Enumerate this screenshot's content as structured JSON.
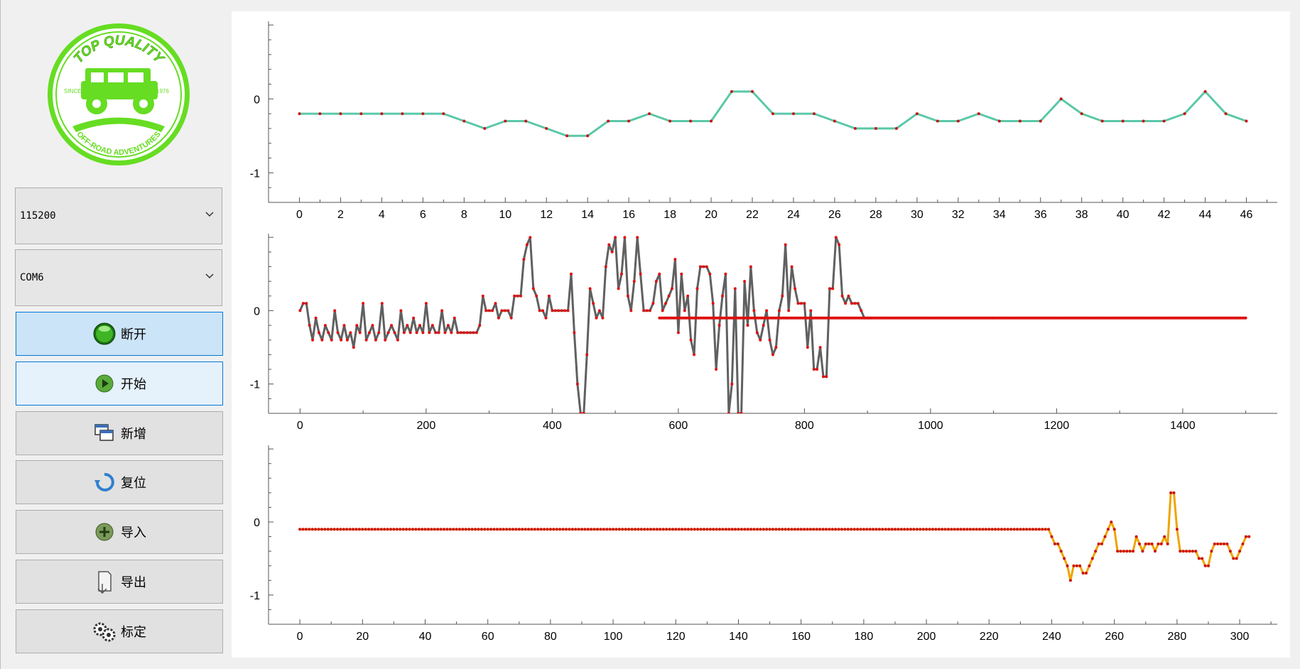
{
  "logo": {
    "text_top": "TOP QUALITY",
    "text_bottom": "OFF-ROAD ADVENTURES",
    "since": "SINCE",
    "year": "1976",
    "color": "#66dd22"
  },
  "controls": {
    "baud_rate": {
      "value": "115200"
    },
    "port": {
      "value": "COM6"
    },
    "buttons": {
      "disconnect": "断开",
      "start": "开始",
      "add": "新增",
      "reset": "复位",
      "import": "导入",
      "export": "导出",
      "calibrate": "标定"
    }
  },
  "chart_data": [
    {
      "type": "line",
      "title": "",
      "xlabel": "",
      "ylabel": "",
      "xlim": [
        -1.5,
        47.5
      ],
      "ylim": [
        -1.4,
        1.05
      ],
      "x_ticks": [
        0,
        2,
        4,
        6,
        8,
        10,
        12,
        14,
        16,
        18,
        20,
        22,
        24,
        26,
        28,
        30,
        32,
        34,
        36,
        38,
        40,
        42,
        44,
        46
      ],
      "y_ticks": [
        0,
        -1
      ],
      "grid": false,
      "line_color": "#5ac8a8",
      "marker_color": "#cc1111",
      "series": [
        {
          "values": [
            -0.2,
            -0.2,
            -0.2,
            -0.2,
            -0.2,
            -0.2,
            -0.2,
            -0.2,
            -0.3,
            -0.4,
            -0.3,
            -0.3,
            -0.4,
            -0.5,
            -0.5,
            -0.3,
            -0.3,
            -0.2,
            -0.3,
            -0.3,
            -0.3,
            0.1,
            0.1,
            -0.2,
            -0.2,
            -0.2,
            -0.3,
            -0.4,
            -0.4,
            -0.4,
            -0.2,
            -0.3,
            -0.3,
            -0.2,
            -0.3,
            -0.3,
            -0.3,
            0.0,
            -0.2,
            -0.3,
            -0.3,
            -0.3,
            -0.3,
            -0.2,
            0.1,
            -0.2,
            -0.3
          ]
        }
      ]
    },
    {
      "type": "line",
      "title": "",
      "xlabel": "",
      "ylabel": "",
      "xlim": [
        -50,
        1550
      ],
      "ylim": [
        -1.4,
        1.05
      ],
      "x_ticks": [
        0,
        200,
        400,
        600,
        800,
        1000,
        1200,
        1400
      ],
      "y_ticks": [
        0,
        -1
      ],
      "grid": false,
      "line_color": "#606060",
      "marker_color": "#dd1111",
      "series": [
        {
          "x_start": 0,
          "x_step": 5,
          "values": [
            0,
            0.1,
            0.1,
            -0.2,
            -0.4,
            -0.1,
            -0.3,
            -0.4,
            -0.2,
            -0.3,
            -0.4,
            0.0,
            -0.3,
            -0.4,
            -0.2,
            -0.4,
            -0.3,
            -0.5,
            -0.2,
            -0.3,
            0.1,
            -0.4,
            -0.3,
            -0.2,
            -0.4,
            -0.3,
            0.1,
            -0.4,
            -0.3,
            -0.2,
            -0.3,
            -0.4,
            0.0,
            -0.3,
            -0.2,
            -0.3,
            -0.1,
            -0.3,
            -0.2,
            -0.3,
            0.1,
            -0.3,
            -0.2,
            -0.3,
            -0.3,
            0.0,
            -0.3,
            -0.2,
            -0.3,
            -0.1,
            -0.3,
            -0.3,
            -0.3,
            -0.3,
            -0.3,
            -0.3,
            -0.3,
            -0.2,
            0.2,
            0.0,
            0.0,
            0.0,
            0.1,
            -0.1,
            0.0,
            0.0,
            0.0,
            -0.1,
            0.2,
            0.2,
            0.2,
            0.7,
            0.9,
            1.0,
            0.3,
            0.2,
            0.0,
            0.0,
            -0.1,
            0.2,
            0.0,
            0.0,
            0.0,
            0.0,
            0.0,
            0.0,
            0.5,
            -0.3,
            -1.0,
            -1.4,
            -1.4,
            -0.6,
            0.3,
            0.1,
            -0.1,
            0.0,
            -0.1,
            0.6,
            0.9,
            0.8,
            1.0,
            0.3,
            0.5,
            1.0,
            0.2,
            0.0,
            0.4,
            1.0,
            0.5,
            0.0,
            0.0,
            0.0,
            0.1,
            0.4,
            0.5,
            0.0,
            0.1,
            0.2,
            0.3,
            0.7,
            -0.3,
            0.5,
            0.0,
            0.2,
            -0.4,
            -0.6,
            0.3,
            0.6,
            0.6,
            0.6,
            0.5,
            0.1,
            -0.8,
            -0.2,
            0.2,
            0.5,
            -1.4,
            -1.0,
            0.3,
            -1.4,
            -1.4,
            0.4,
            -0.2,
            0.6,
            0.0,
            -0.3,
            -0.4,
            -0.2,
            0.0,
            -0.4,
            -0.6,
            -0.5,
            0.0,
            0.2,
            0.9,
            0.0,
            0.6,
            0.3,
            0.1,
            0.1,
            0.1,
            -0.5,
            0.0,
            -0.8,
            -0.8,
            -0.5,
            -0.9,
            -0.9,
            0.3,
            0.3,
            1.0,
            0.9,
            0.2,
            0.1,
            0.2,
            0.1,
            0.1,
            0.1,
            0.0,
            -0.1,
            -0.1,
            -0.1
          ]
        },
        {
          "x_start": 570,
          "x_end": 1500,
          "constant_value": -0.1
        }
      ]
    },
    {
      "type": "line",
      "title": "",
      "xlabel": "",
      "ylabel": "",
      "xlim": [
        -10,
        312
      ],
      "ylim": [
        -1.4,
        1.05
      ],
      "x_ticks": [
        0,
        20,
        40,
        60,
        80,
        100,
        120,
        140,
        160,
        180,
        200,
        220,
        240,
        260,
        280,
        300
      ],
      "y_ticks": [
        0,
        -1
      ],
      "grid": false,
      "line_color": "#f0a400",
      "marker_color": "#cc1111",
      "series": [
        {
          "x_start": 0,
          "constant_value": -0.1,
          "constant_until": 239,
          "x_tail_start": 240,
          "tail_values": [
            -0.2,
            -0.3,
            -0.3,
            -0.4,
            -0.5,
            -0.6,
            -0.8,
            -0.6,
            -0.6,
            -0.6,
            -0.7,
            -0.7,
            -0.6,
            -0.5,
            -0.4,
            -0.3,
            -0.3,
            -0.2,
            -0.1,
            0.0,
            -0.1,
            -0.4,
            -0.4,
            -0.4,
            -0.4,
            -0.4,
            -0.4,
            -0.2,
            -0.3,
            -0.4,
            -0.3,
            -0.3,
            -0.3,
            -0.4,
            -0.3,
            -0.3,
            -0.2,
            -0.3,
            0.4,
            0.4,
            -0.1,
            -0.4,
            -0.4,
            -0.4,
            -0.4,
            -0.4,
            -0.4,
            -0.5,
            -0.5,
            -0.6,
            -0.6,
            -0.4,
            -0.3,
            -0.3,
            -0.3,
            -0.3,
            -0.3,
            -0.4,
            -0.5,
            -0.5,
            -0.4,
            -0.3,
            -0.2,
            -0.2
          ]
        }
      ]
    }
  ]
}
